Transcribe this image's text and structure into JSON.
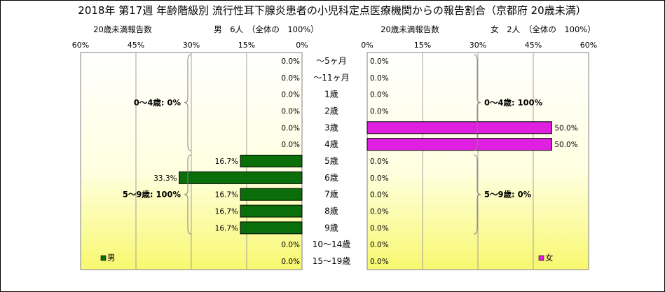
{
  "chart_data": {
    "type": "bar",
    "title": "2018年 第17週 年齢階級別 流行性耳下腺炎患者の小児科定点医療機関からの報告割合（京都府 20歳未満）",
    "categories": [
      "～5ヶ月",
      "～11ヶ月",
      "1歳",
      "2歳",
      "3歳",
      "4歳",
      "5歳",
      "6歳",
      "7歳",
      "8歳",
      "9歳",
      "10～14歳",
      "15～19歳"
    ],
    "xlim": [
      0,
      60
    ],
    "ticks": [
      60,
      45,
      30,
      15,
      0
    ],
    "tick_labels_left": [
      "60%",
      "45%",
      "30%",
      "15%",
      "0%"
    ],
    "tick_labels_right": [
      "0%",
      "15%",
      "30%",
      "45%",
      "60%"
    ],
    "grid": true,
    "panels": [
      {
        "side": "left",
        "subtitle_left": "20歳未満報告数",
        "subtitle_main": "男　6人　（全体の　100%）",
        "series": [
          {
            "name": "男",
            "color": "#0a6e0a",
            "values": [
              0.0,
              0.0,
              0.0,
              0.0,
              0.0,
              0.0,
              16.7,
              33.3,
              16.7,
              16.7,
              16.7,
              0.0,
              0.0
            ],
            "labels": [
              "0.0%",
              "0.0%",
              "0.0%",
              "0.0%",
              "0.0%",
              "0.0%",
              "16.7%",
              "33.3%",
              "16.7%",
              "16.7%",
              "16.7%",
              "0.0%",
              "0.0%"
            ]
          }
        ],
        "annotations": [
          {
            "text": "0～4歳: 0%",
            "from": 0,
            "to": 5
          },
          {
            "text": "5～9歳: 100%",
            "from": 6,
            "to": 10
          }
        ],
        "legend": "bottom-left"
      },
      {
        "side": "right",
        "subtitle_left": "20歳未満報告数",
        "subtitle_main": "女　2人　（全体の　100%）",
        "series": [
          {
            "name": "女",
            "color": "#e020e0",
            "values": [
              0.0,
              0.0,
              0.0,
              0.0,
              50.0,
              50.0,
              0.0,
              0.0,
              0.0,
              0.0,
              0.0,
              0.0,
              0.0
            ],
            "labels": [
              "0.0%",
              "0.0%",
              "0.0%",
              "0.0%",
              "50.0%",
              "50.0%",
              "0.0%",
              "0.0%",
              "0.0%",
              "0.0%",
              "0.0%",
              "0.0%",
              "0.0%"
            ]
          }
        ],
        "annotations": [
          {
            "text": "0～4歳: 100%",
            "from": 0,
            "to": 5
          },
          {
            "text": "5～9歳: 0%",
            "from": 6,
            "to": 10
          }
        ],
        "legend": "bottom-right"
      }
    ]
  }
}
